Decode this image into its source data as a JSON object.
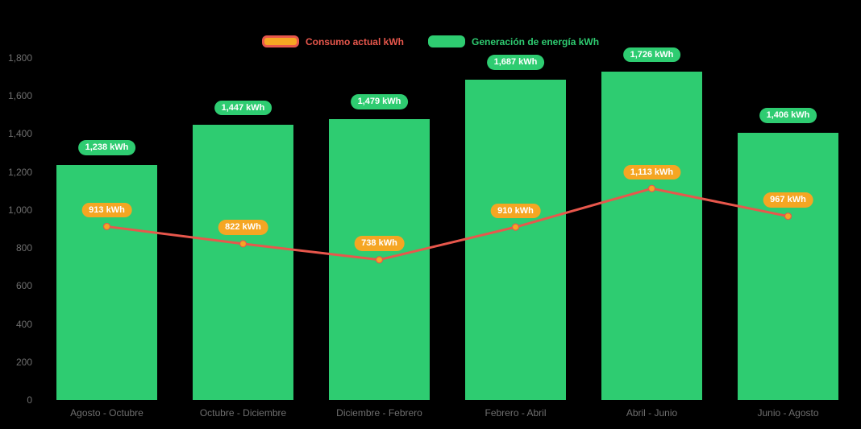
{
  "chart_data": {
    "type": "combo",
    "title": "",
    "categories": [
      "Agosto - Octubre",
      "Octubre - Diciembre",
      "Diciembre - Febrero",
      "Febrero - Abril",
      "Abril - Junio",
      "Junio - Agosto"
    ],
    "series": [
      {
        "name": "Consumo actual kWh",
        "type": "line",
        "color": "#e8574c",
        "marker_color": "#f5a623",
        "values": [
          913,
          822,
          738,
          910,
          1113,
          967
        ],
        "value_labels": [
          "913 kWh",
          "822 kWh",
          "738 kWh",
          "910 kWh",
          "1,113 kWh",
          "967 kWh"
        ]
      },
      {
        "name": "Generación de energía kWh",
        "type": "bar",
        "color": "#2ecc71",
        "values": [
          1238,
          1447,
          1479,
          1687,
          1726,
          1406
        ],
        "value_labels": [
          "1,238 kWh",
          "1,447 kWh",
          "1,479 kWh",
          "1,687 kWh",
          "1,726 kWh",
          "1,406 kWh"
        ]
      }
    ],
    "xlabel": "",
    "ylabel": "",
    "ylim": [
      0,
      1800
    ],
    "yticks": [
      "1,800",
      "1,600",
      "1,400",
      "1,200",
      "1,000",
      "800",
      "600",
      "400",
      "200",
      "0"
    ],
    "legend_position": "top",
    "grid": false,
    "axis_text_color": "#6f6f6f",
    "background_color": "#000000"
  }
}
